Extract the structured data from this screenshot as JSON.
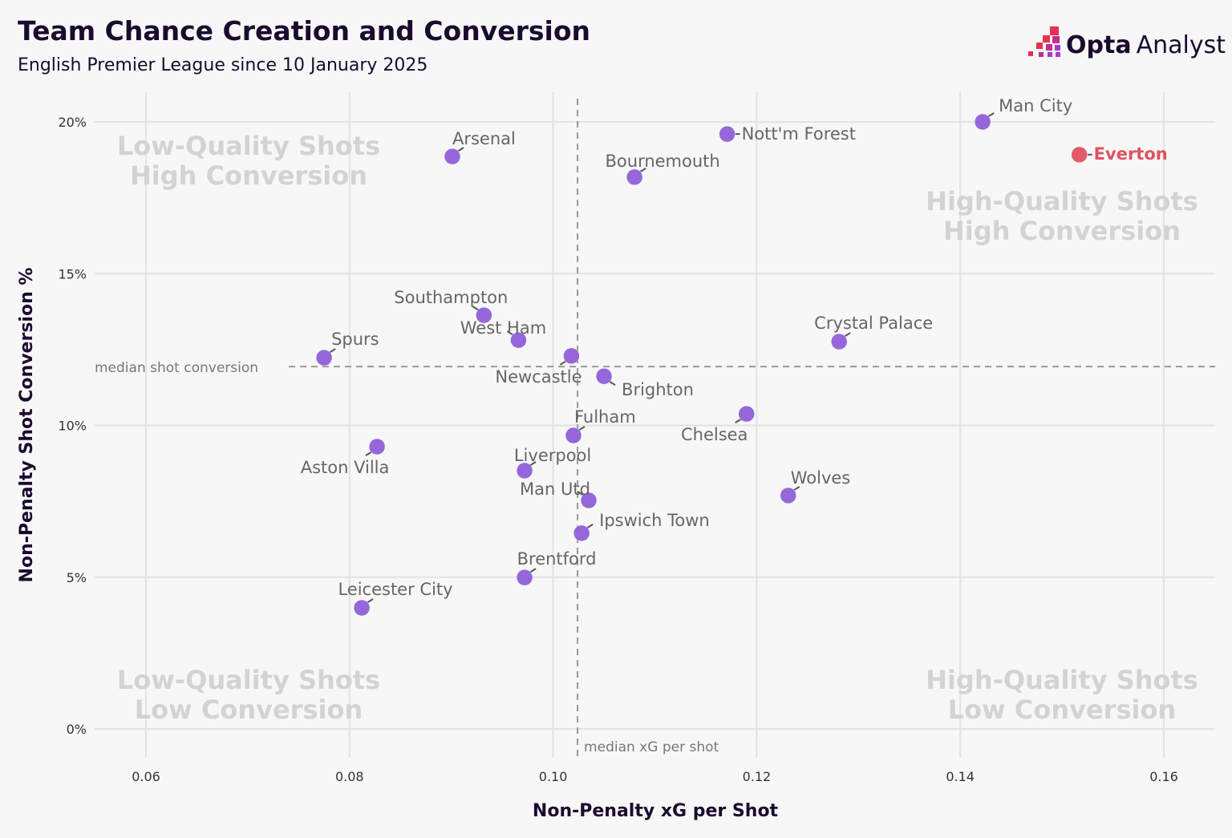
{
  "header": {
    "title": "Team Chance Creation and Conversion",
    "subtitle": "English Premier League since 10 January 2025",
    "logo_bold": "Opta",
    "logo_light": "Analyst"
  },
  "chart_data": {
    "type": "scatter",
    "xlabel": "Non-Penalty xG per Shot",
    "ylabel": "Non-Penalty Shot Conversion %",
    "xlim": [
      0.055,
      0.165
    ],
    "ylim": [
      -0.8,
      21
    ],
    "x_ticks": [
      0.06,
      0.08,
      0.1,
      0.12,
      0.14,
      0.16
    ],
    "x_tick_labels": [
      "0.06",
      "0.08",
      "0.10",
      "0.12",
      "0.14",
      "0.16"
    ],
    "y_ticks": [
      0,
      5,
      10,
      15,
      20
    ],
    "y_tick_labels": [
      "0%",
      "5%",
      "10%",
      "15%",
      "20%"
    ],
    "grid": true,
    "median_x": 0.1024,
    "median_y": 11.94,
    "median_x_label": "median xG per shot",
    "median_y_label": "median shot conversion",
    "quadrant_labels": {
      "top_left": [
        "Low-Quality Shots",
        "High Conversion"
      ],
      "top_right": [
        "High-Quality Shots",
        "High Conversion"
      ],
      "bottom_left": [
        "Low-Quality Shots",
        "Low Conversion"
      ],
      "bottom_right": [
        "High-Quality Shots",
        "Low Conversion"
      ]
    },
    "colors": {
      "point": "#8f5fd9",
      "highlight": "#e05260",
      "grid": "#e2e2e2",
      "median": "#999999"
    },
    "points": [
      {
        "team": "Man City",
        "x": 0.1422,
        "y": 20.0
      },
      {
        "team": "Everton",
        "x": 0.1517,
        "y": 18.92,
        "highlight": true
      },
      {
        "team": "Nott'm Forest",
        "x": 0.1171,
        "y": 19.6
      },
      {
        "team": "Arsenal",
        "x": 0.0901,
        "y": 18.86
      },
      {
        "team": "Bournemouth",
        "x": 0.108,
        "y": 18.18
      },
      {
        "team": "Southampton",
        "x": 0.0932,
        "y": 13.63
      },
      {
        "team": "West Ham",
        "x": 0.0966,
        "y": 12.81
      },
      {
        "team": "Spurs",
        "x": 0.0775,
        "y": 12.23
      },
      {
        "team": "Newcastle",
        "x": 0.1018,
        "y": 12.29
      },
      {
        "team": "Brighton",
        "x": 0.105,
        "y": 11.62
      },
      {
        "team": "Crystal Palace",
        "x": 0.1281,
        "y": 12.76
      },
      {
        "team": "Chelsea",
        "x": 0.119,
        "y": 10.38
      },
      {
        "team": "Fulham",
        "x": 0.102,
        "y": 9.67
      },
      {
        "team": "Aston Villa",
        "x": 0.0827,
        "y": 9.3
      },
      {
        "team": "Liverpool",
        "x": 0.0972,
        "y": 8.51
      },
      {
        "team": "Wolves",
        "x": 0.1231,
        "y": 7.69
      },
      {
        "team": "Man Utd",
        "x": 0.1035,
        "y": 7.53
      },
      {
        "team": "Ipswich Town",
        "x": 0.1028,
        "y": 6.45
      },
      {
        "team": "Brentford",
        "x": 0.0972,
        "y": 4.99
      },
      {
        "team": "Leicester City",
        "x": 0.0812,
        "y": 3.99
      }
    ]
  }
}
